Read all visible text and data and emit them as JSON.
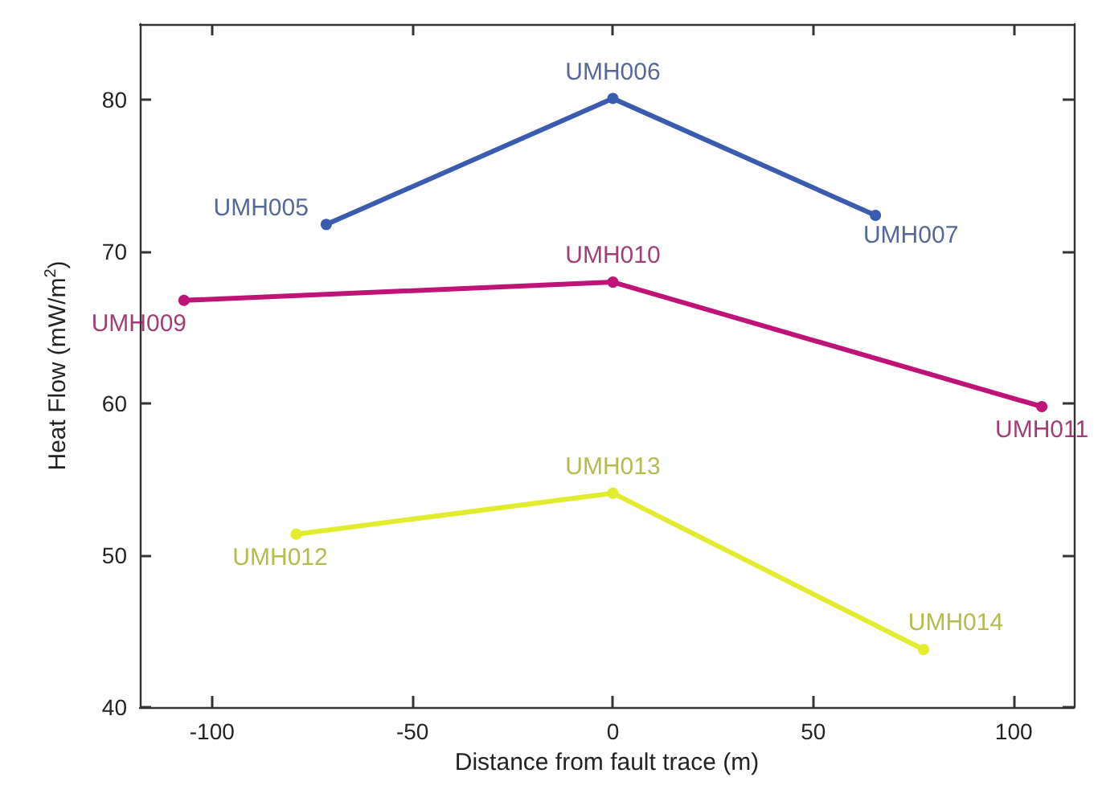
{
  "chart_data": {
    "type": "line",
    "xlabel": "Distance from fault trace (m)",
    "ylabel": "Heat Flow (mW/m$^{2}$)",
    "series": [
      {
        "color": "#3a5cb0",
        "x": [
          -71.5,
          0,
          65.5
        ],
        "values": [
          71.8,
          80.1,
          72.4
        ]
      },
      {
        "color": "#c01378",
        "x": [
          -107,
          0,
          107
        ],
        "values": [
          66.8,
          68.0,
          59.8
        ]
      },
      {
        "color": "#e2ec2c",
        "x": [
          -79,
          0,
          77.5
        ],
        "values": [
          51.4,
          54.1,
          43.8
        ]
      }
    ],
    "annotations": [
      {
        "text": "UMH005",
        "x": -71.5,
        "y": 71.8
      },
      {
        "text": "UMH006",
        "x": 0,
        "y": 80.1
      },
      {
        "text": "UMH007",
        "x": 65.5,
        "y": 72.4
      },
      {
        "text": "UMH009",
        "x": -107,
        "y": 66.8
      },
      {
        "text": "UMH010",
        "x": 0,
        "y": 68.0
      },
      {
        "text": "UMH011",
        "x": 107,
        "y": 59.8
      },
      {
        "text": "UMH012",
        "x": -79,
        "y": 51.4
      },
      {
        "text": "UMH013",
        "x": 0,
        "y": 54.1
      },
      {
        "text": "UMH014",
        "x": 77.5,
        "y": 43.8
      }
    ],
    "xlim": [
      -118,
      115
    ],
    "xticks": [
      -100,
      -50,
      0,
      50,
      100
    ],
    "ylim": [
      40,
      85
    ],
    "yticks": [
      40,
      50,
      60,
      70,
      80
    ],
    "grid": false,
    "marker": "circle",
    "line_style": "solid"
  }
}
